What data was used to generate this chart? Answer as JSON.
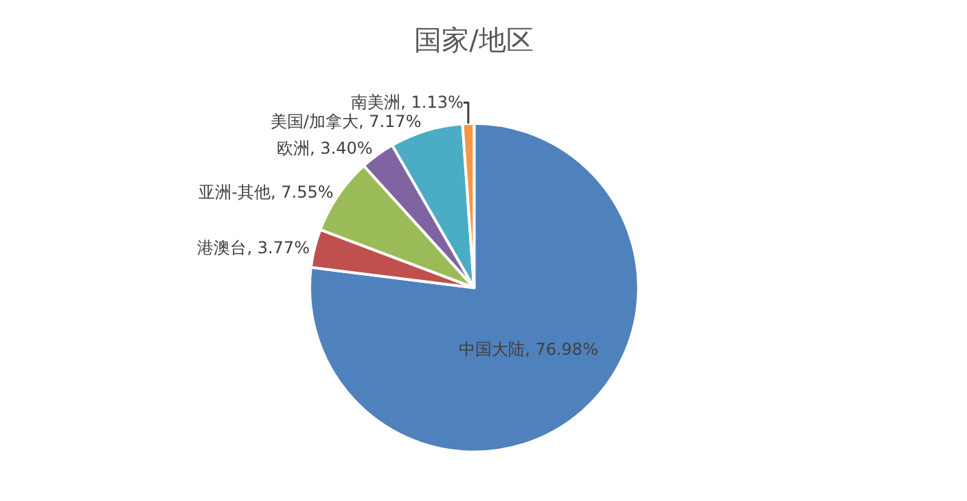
{
  "chart_data": {
    "type": "pie",
    "title": "国家/地区",
    "categories": [
      "中国大陆",
      "港澳台",
      "亚洲-其他",
      "欧洲",
      "美国/加拿大",
      "南美洲"
    ],
    "values": [
      76.98,
      3.77,
      7.55,
      3.4,
      7.17,
      1.13
    ],
    "colors": [
      "#4f81bd",
      "#c0504d",
      "#9bbb59",
      "#8064a2",
      "#4bacc6",
      "#f79646"
    ],
    "value_labels": [
      "76.98%",
      "3.77%",
      "7.55%",
      "3.40%",
      "7.17%",
      "1.13%"
    ],
    "legend": false
  }
}
